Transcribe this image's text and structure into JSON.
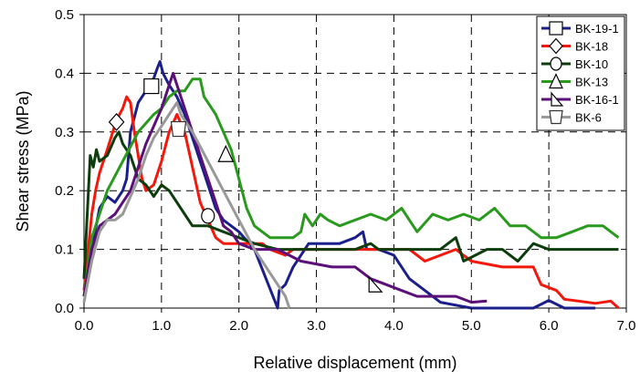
{
  "chart_data": {
    "type": "line",
    "title": "",
    "xlabel": "Relative displacement (mm)",
    "ylabel": "Shear stress (MPa)",
    "xlim": [
      0,
      7
    ],
    "ylim": [
      0,
      0.5
    ],
    "x_ticks": [
      "0.0",
      "1.0",
      "2.0",
      "3.0",
      "4.0",
      "5.0",
      "6.0",
      "7.0"
    ],
    "y_ticks": [
      "0.0",
      "0.1",
      "0.2",
      "0.3",
      "0.4",
      "0.5"
    ],
    "grid": "dashed",
    "legend_position": "top-right",
    "series": [
      {
        "name": "BK-19-1",
        "color": "#1b1f8a",
        "marker": "square",
        "marker_points": [
          [
            0.87,
            0.378
          ]
        ],
        "points": [
          [
            0.0,
            0.02
          ],
          [
            0.1,
            0.1
          ],
          [
            0.2,
            0.17
          ],
          [
            0.3,
            0.19
          ],
          [
            0.4,
            0.18
          ],
          [
            0.5,
            0.2
          ],
          [
            0.55,
            0.22
          ],
          [
            0.6,
            0.3
          ],
          [
            0.7,
            0.35
          ],
          [
            0.8,
            0.37
          ],
          [
            0.87,
            0.38
          ],
          [
            0.95,
            0.41
          ],
          [
            0.98,
            0.42
          ],
          [
            1.02,
            0.4
          ],
          [
            1.1,
            0.38
          ],
          [
            1.2,
            0.36
          ],
          [
            1.3,
            0.33
          ],
          [
            1.4,
            0.29
          ],
          [
            1.5,
            0.25
          ],
          [
            1.6,
            0.21
          ],
          [
            1.7,
            0.17
          ],
          [
            1.8,
            0.15
          ],
          [
            1.9,
            0.14
          ],
          [
            2.0,
            0.13
          ],
          [
            2.2,
            0.1
          ],
          [
            2.35,
            0.05
          ],
          [
            2.5,
            0.0
          ],
          [
            2.52,
            0.03
          ],
          [
            2.6,
            0.04
          ],
          [
            2.7,
            0.07
          ],
          [
            2.9,
            0.11
          ],
          [
            3.3,
            0.11
          ],
          [
            3.5,
            0.12
          ],
          [
            3.6,
            0.13
          ],
          [
            3.65,
            0.1
          ],
          [
            3.8,
            0.1
          ],
          [
            4.0,
            0.09
          ],
          [
            4.1,
            0.07
          ],
          [
            4.2,
            0.05
          ],
          [
            4.4,
            0.03
          ],
          [
            4.6,
            0.01
          ],
          [
            5.0,
            0.0
          ],
          [
            5.8,
            0.0
          ],
          [
            6.0,
            0.013
          ],
          [
            6.2,
            0.0
          ],
          [
            6.6,
            0.0
          ]
        ]
      },
      {
        "name": "BK-18",
        "color": "#f2180c",
        "marker": "diamond",
        "marker_points": [
          [
            0.42,
            0.317
          ]
        ],
        "points": [
          [
            0.0,
            0.03
          ],
          [
            0.1,
            0.16
          ],
          [
            0.15,
            0.2
          ],
          [
            0.2,
            0.23
          ],
          [
            0.3,
            0.27
          ],
          [
            0.42,
            0.32
          ],
          [
            0.5,
            0.34
          ],
          [
            0.55,
            0.36
          ],
          [
            0.6,
            0.35
          ],
          [
            0.65,
            0.3
          ],
          [
            0.7,
            0.26
          ],
          [
            0.75,
            0.22
          ],
          [
            0.8,
            0.2
          ],
          [
            0.9,
            0.21
          ],
          [
            1.0,
            0.25
          ],
          [
            1.1,
            0.3
          ],
          [
            1.2,
            0.33
          ],
          [
            1.3,
            0.3
          ],
          [
            1.4,
            0.24
          ],
          [
            1.5,
            0.18
          ],
          [
            1.6,
            0.15
          ],
          [
            1.7,
            0.12
          ],
          [
            1.8,
            0.11
          ],
          [
            2.0,
            0.11
          ],
          [
            2.3,
            0.11
          ],
          [
            2.4,
            0.1
          ],
          [
            2.6,
            0.09
          ],
          [
            2.7,
            0.1
          ],
          [
            3.0,
            0.1
          ],
          [
            3.4,
            0.1
          ],
          [
            3.8,
            0.1
          ],
          [
            4.2,
            0.1
          ],
          [
            4.4,
            0.08
          ],
          [
            4.8,
            0.1
          ],
          [
            5.0,
            0.08
          ],
          [
            5.4,
            0.07
          ],
          [
            5.8,
            0.07
          ],
          [
            5.9,
            0.04
          ],
          [
            6.1,
            0.03
          ],
          [
            6.2,
            0.015
          ],
          [
            6.6,
            0.008
          ],
          [
            6.8,
            0.012
          ],
          [
            6.9,
            0.0
          ]
        ]
      },
      {
        "name": "BK-10",
        "color": "#0d3d0d",
        "marker": "circle",
        "marker_points": [
          [
            1.6,
            0.157
          ]
        ],
        "points": [
          [
            0.0,
            0.05
          ],
          [
            0.08,
            0.26
          ],
          [
            0.12,
            0.24
          ],
          [
            0.16,
            0.27
          ],
          [
            0.2,
            0.25
          ],
          [
            0.3,
            0.26
          ],
          [
            0.4,
            0.29
          ],
          [
            0.45,
            0.3
          ],
          [
            0.5,
            0.28
          ],
          [
            0.6,
            0.26
          ],
          [
            0.7,
            0.22
          ],
          [
            0.8,
            0.21
          ],
          [
            0.9,
            0.19
          ],
          [
            1.0,
            0.21
          ],
          [
            1.1,
            0.2
          ],
          [
            1.2,
            0.18
          ],
          [
            1.3,
            0.16
          ],
          [
            1.4,
            0.14
          ],
          [
            1.6,
            0.14
          ],
          [
            1.8,
            0.13
          ],
          [
            2.0,
            0.12
          ],
          [
            2.2,
            0.11
          ],
          [
            2.5,
            0.1
          ],
          [
            2.8,
            0.1
          ],
          [
            3.0,
            0.1
          ],
          [
            3.5,
            0.1
          ],
          [
            3.7,
            0.11
          ],
          [
            3.8,
            0.1
          ],
          [
            4.2,
            0.1
          ],
          [
            4.6,
            0.1
          ],
          [
            4.8,
            0.12
          ],
          [
            4.9,
            0.08
          ],
          [
            5.2,
            0.1
          ],
          [
            5.4,
            0.1
          ],
          [
            5.6,
            0.08
          ],
          [
            5.8,
            0.11
          ],
          [
            6.0,
            0.1
          ],
          [
            6.2,
            0.1
          ],
          [
            6.6,
            0.1
          ],
          [
            6.9,
            0.1
          ]
        ]
      },
      {
        "name": "BK-13",
        "color": "#2a9a1e",
        "marker": "triangle",
        "marker_points": [
          [
            1.83,
            0.262
          ]
        ],
        "points": [
          [
            0.0,
            0.02
          ],
          [
            0.1,
            0.12
          ],
          [
            0.3,
            0.2
          ],
          [
            0.5,
            0.25
          ],
          [
            0.7,
            0.3
          ],
          [
            0.9,
            0.33
          ],
          [
            1.0,
            0.34
          ],
          [
            1.1,
            0.36
          ],
          [
            1.2,
            0.37
          ],
          [
            1.3,
            0.37
          ],
          [
            1.4,
            0.39
          ],
          [
            1.5,
            0.39
          ],
          [
            1.55,
            0.36
          ],
          [
            1.6,
            0.35
          ],
          [
            1.7,
            0.33
          ],
          [
            1.8,
            0.3
          ],
          [
            1.9,
            0.27
          ],
          [
            2.0,
            0.22
          ],
          [
            2.1,
            0.17
          ],
          [
            2.2,
            0.14
          ],
          [
            2.4,
            0.12
          ],
          [
            2.6,
            0.12
          ],
          [
            2.7,
            0.12
          ],
          [
            2.8,
            0.13
          ],
          [
            2.85,
            0.16
          ],
          [
            2.95,
            0.14
          ],
          [
            3.05,
            0.16
          ],
          [
            3.15,
            0.15
          ],
          [
            3.3,
            0.14
          ],
          [
            3.5,
            0.15
          ],
          [
            3.7,
            0.16
          ],
          [
            3.9,
            0.15
          ],
          [
            4.1,
            0.17
          ],
          [
            4.3,
            0.13
          ],
          [
            4.5,
            0.16
          ],
          [
            4.7,
            0.15
          ],
          [
            4.9,
            0.16
          ],
          [
            5.1,
            0.15
          ],
          [
            5.3,
            0.17
          ],
          [
            5.5,
            0.14
          ],
          [
            5.7,
            0.14
          ],
          [
            5.9,
            0.12
          ],
          [
            6.1,
            0.12
          ],
          [
            6.3,
            0.13
          ],
          [
            6.5,
            0.14
          ],
          [
            6.7,
            0.14
          ],
          [
            6.9,
            0.12
          ]
        ]
      },
      {
        "name": "BK-16-1",
        "color": "#5b0f78",
        "marker": "half-triangle",
        "marker_points": [
          [
            3.75,
            0.04
          ]
        ],
        "points": [
          [
            0.0,
            0.02
          ],
          [
            0.1,
            0.1
          ],
          [
            0.2,
            0.14
          ],
          [
            0.3,
            0.15
          ],
          [
            0.4,
            0.16
          ],
          [
            0.5,
            0.18
          ],
          [
            0.6,
            0.2
          ],
          [
            0.7,
            0.24
          ],
          [
            0.8,
            0.28
          ],
          [
            0.9,
            0.31
          ],
          [
            1.0,
            0.34
          ],
          [
            1.1,
            0.38
          ],
          [
            1.15,
            0.4
          ],
          [
            1.25,
            0.36
          ],
          [
            1.4,
            0.3
          ],
          [
            1.5,
            0.26
          ],
          [
            1.6,
            0.22
          ],
          [
            1.7,
            0.18
          ],
          [
            1.8,
            0.14
          ],
          [
            1.9,
            0.13
          ],
          [
            2.0,
            0.11
          ],
          [
            2.2,
            0.1
          ],
          [
            2.5,
            0.1
          ],
          [
            2.8,
            0.08
          ],
          [
            3.2,
            0.07
          ],
          [
            3.5,
            0.07
          ],
          [
            3.7,
            0.05
          ],
          [
            3.9,
            0.04
          ],
          [
            4.1,
            0.03
          ],
          [
            4.3,
            0.02
          ],
          [
            4.6,
            0.02
          ],
          [
            4.8,
            0.02
          ],
          [
            5.0,
            0.01
          ],
          [
            5.2,
            0.012
          ]
        ]
      },
      {
        "name": "BK-6",
        "color": "#999999",
        "marker": "inverted-trapezoid",
        "marker_points": [
          [
            1.22,
            0.305
          ]
        ],
        "points": [
          [
            0.0,
            0.01
          ],
          [
            0.1,
            0.08
          ],
          [
            0.2,
            0.13
          ],
          [
            0.3,
            0.15
          ],
          [
            0.4,
            0.15
          ],
          [
            0.5,
            0.16
          ],
          [
            0.6,
            0.19
          ],
          [
            0.7,
            0.22
          ],
          [
            0.8,
            0.26
          ],
          [
            0.9,
            0.29
          ],
          [
            1.0,
            0.31
          ],
          [
            1.1,
            0.33
          ],
          [
            1.2,
            0.35
          ],
          [
            1.25,
            0.33
          ],
          [
            1.4,
            0.3
          ],
          [
            1.6,
            0.25
          ],
          [
            1.8,
            0.2
          ],
          [
            2.0,
            0.15
          ],
          [
            2.2,
            0.1
          ],
          [
            2.4,
            0.06
          ],
          [
            2.6,
            0.02
          ],
          [
            2.65,
            0.0
          ]
        ]
      }
    ]
  }
}
